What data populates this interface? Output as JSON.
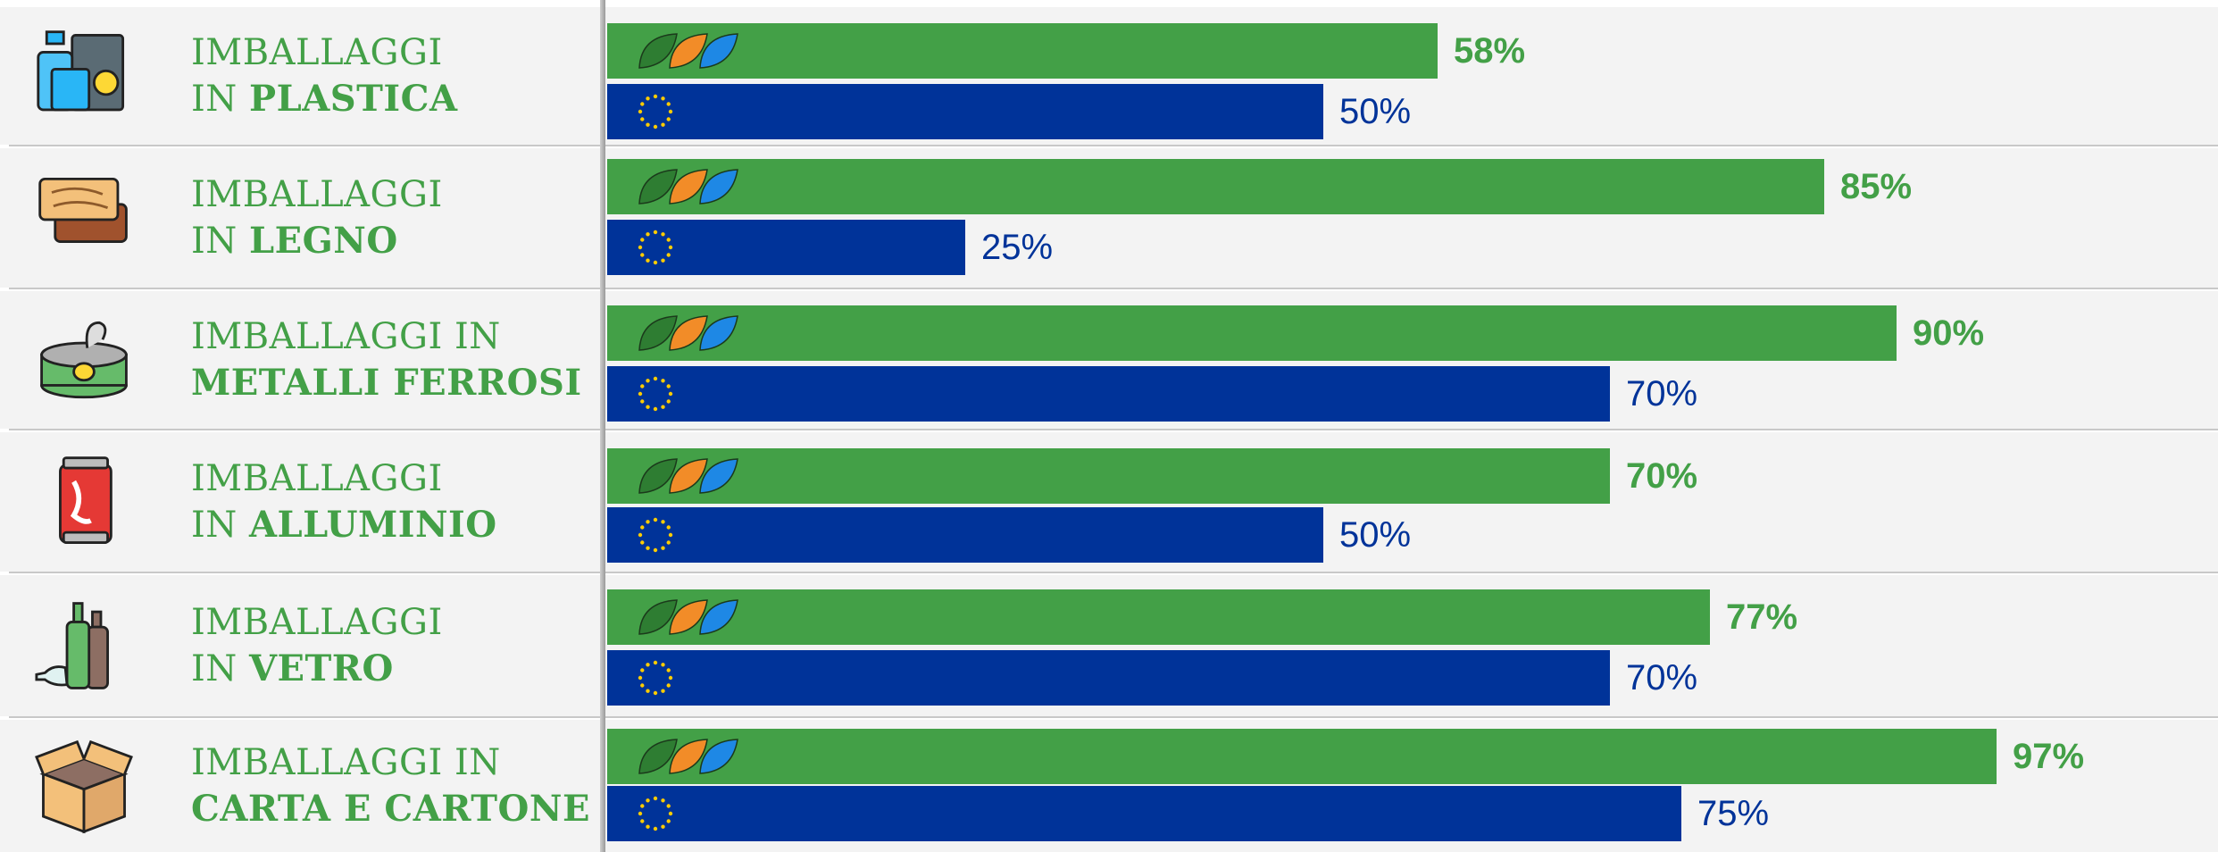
{
  "chart_data": {
    "type": "bar",
    "orientation": "horizontal",
    "xlim": [
      0,
      100
    ],
    "categories": [
      {
        "line1": "IMBALLAGGI",
        "line2_prefix": "IN ",
        "line2_bold": "PLASTICA",
        "icon": "plastic-packaging-icon"
      },
      {
        "line1": "IMBALLAGGI",
        "line2_prefix": "IN ",
        "line2_bold": "LEGNO",
        "icon": "wood-packaging-icon"
      },
      {
        "line1": "IMBALLAGGI IN",
        "line2_prefix": "",
        "line2_bold": "METALLI FERROSI",
        "icon": "tin-can-icon"
      },
      {
        "line1": "IMBALLAGGI",
        "line2_prefix": "IN ",
        "line2_bold": "ALLUMINIO",
        "icon": "aluminium-can-icon"
      },
      {
        "line1": "IMBALLAGGI",
        "line2_prefix": "IN ",
        "line2_bold": "VETRO",
        "icon": "glass-bottles-icon"
      },
      {
        "line1": "IMBALLAGGI IN",
        "line2_prefix": "",
        "line2_bold": "CARTA E CARTONE",
        "icon": "cardboard-box-icon"
      }
    ],
    "series": [
      {
        "marker": "brand-leaf-logo-icon",
        "color": "#43a047",
        "values": [
          58,
          85,
          90,
          70,
          77,
          97
        ],
        "labels": [
          "58%",
          "85%",
          "90%",
          "70%",
          "77%",
          "97%"
        ]
      },
      {
        "marker": "eu-stars-icon",
        "color": "#003399",
        "values": [
          50,
          25,
          70,
          50,
          70,
          75
        ],
        "labels": [
          "50%",
          "25%",
          "70%",
          "50%",
          "70%",
          "75%"
        ]
      }
    ]
  }
}
